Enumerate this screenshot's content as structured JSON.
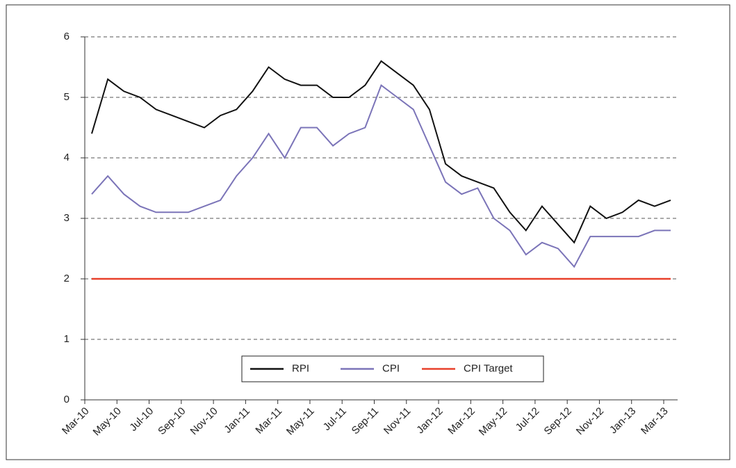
{
  "chart_data": {
    "type": "line",
    "categories": [
      "Mar-10",
      null,
      "May-10",
      null,
      "Jul-10",
      null,
      "Sep-10",
      null,
      "Nov-10",
      null,
      "Jan-11",
      null,
      "Mar-11",
      null,
      "May-11",
      null,
      "Jul-11",
      null,
      "Sep-11",
      null,
      "Nov-11",
      null,
      "Jan-12",
      null,
      "Mar-12",
      null,
      "May-12",
      null,
      "Jul-12",
      null,
      "Sep-12",
      null,
      "Nov-12",
      null,
      "Jan-13",
      null,
      "Mar-13"
    ],
    "series": [
      {
        "name": "RPI",
        "color": "#111111",
        "values": [
          4.4,
          5.3,
          5.1,
          5.0,
          4.8,
          4.7,
          4.6,
          4.5,
          4.7,
          4.8,
          5.1,
          5.5,
          5.3,
          5.2,
          5.2,
          5.0,
          5.0,
          5.2,
          5.6,
          5.4,
          5.2,
          4.8,
          3.9,
          3.7,
          3.6,
          3.5,
          3.1,
          2.8,
          3.2,
          2.9,
          2.6,
          3.2,
          3.0,
          3.1,
          3.3,
          3.2,
          3.3
        ]
      },
      {
        "name": "CPI",
        "color": "#7b74b8",
        "values": [
          3.4,
          3.7,
          3.4,
          3.2,
          3.1,
          3.1,
          3.1,
          3.2,
          3.3,
          3.7,
          4.0,
          4.4,
          4.0,
          4.5,
          4.5,
          4.2,
          4.4,
          4.5,
          5.2,
          5.0,
          4.8,
          4.2,
          3.6,
          3.4,
          3.5,
          3.0,
          2.8,
          2.4,
          2.6,
          2.5,
          2.2,
          2.7,
          2.7,
          2.7,
          2.7,
          2.8,
          2.8
        ]
      },
      {
        "name": "CPI Target",
        "color": "#e8402a",
        "values": [
          2,
          2,
          2,
          2,
          2,
          2,
          2,
          2,
          2,
          2,
          2,
          2,
          2,
          2,
          2,
          2,
          2,
          2,
          2,
          2,
          2,
          2,
          2,
          2,
          2,
          2,
          2,
          2,
          2,
          2,
          2,
          2,
          2,
          2,
          2,
          2,
          2
        ]
      }
    ],
    "ylim": [
      0,
      6
    ],
    "yticks": [
      0,
      1,
      2,
      3,
      4,
      5,
      6
    ],
    "grid": true,
    "legend": "bottom"
  }
}
